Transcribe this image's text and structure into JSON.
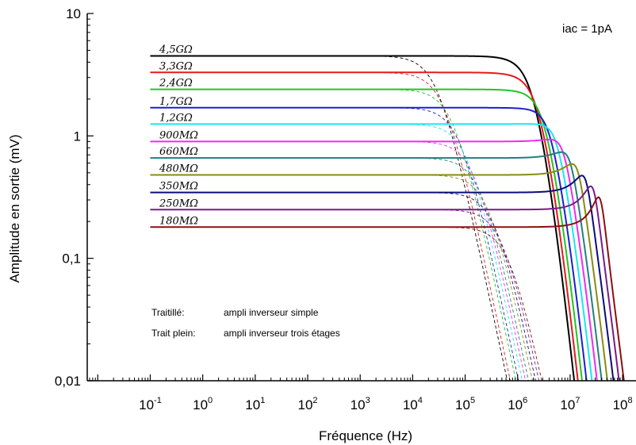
{
  "chart_data": {
    "type": "line",
    "xlabel": "Fréquence (Hz)",
    "ylabel": "Amplitude en sortie (mV)",
    "xscale": "log",
    "yscale": "log",
    "xlim": [
      0.0063,
      180000000
    ],
    "ylim": [
      0.01,
      10
    ],
    "x_ticks": [
      {
        "value": 0.1,
        "base": "10",
        "exp": "-1"
      },
      {
        "value": 1,
        "base": "10",
        "exp": "0"
      },
      {
        "value": 10,
        "base": "10",
        "exp": "1"
      },
      {
        "value": 100,
        "base": "10",
        "exp": "2"
      },
      {
        "value": 1000,
        "base": "10",
        "exp": "3"
      },
      {
        "value": 10000,
        "base": "10",
        "exp": "4"
      },
      {
        "value": 100000,
        "base": "10",
        "exp": "5"
      },
      {
        "value": 1000000,
        "base": "10",
        "exp": "6"
      },
      {
        "value": 10000000,
        "base": "10",
        "exp": "7"
      },
      {
        "value": 100000000,
        "base": "10",
        "exp": "8"
      }
    ],
    "y_ticks": [
      {
        "value": 0.01,
        "label": "0,01"
      },
      {
        "value": 0.1,
        "label": "0,1"
      },
      {
        "value": 1,
        "label": "1"
      },
      {
        "value": 10,
        "label": "10"
      }
    ],
    "annotation": "iac = 1pA",
    "legend_notes": [
      {
        "key": "Traitillé:",
        "text": "ampli inverseur simple"
      },
      {
        "key": "Trait plein:",
        "text": "ampli inverseur trois étages"
      }
    ],
    "legend_placement": "bottom-left",
    "grid": false,
    "x_start": 0.1,
    "series": [
      {
        "name": "4,5GΩ",
        "color": "#000000",
        "values": {
          "plateau": 4.5,
          "fc_dashed": 30000,
          "fc_solid": 1800000
        }
      },
      {
        "name": "3,3GΩ",
        "color": "#e41a1c",
        "values": {
          "plateau": 3.3,
          "fc_dashed": 40000,
          "fc_solid": 2300000
        }
      },
      {
        "name": "2,4GΩ",
        "color": "#22c522",
        "values": {
          "plateau": 2.4,
          "fc_dashed": 60000,
          "fc_solid": 3000000
        }
      },
      {
        "name": "1,7GΩ",
        "color": "#1f1fcc",
        "values": {
          "plateau": 1.7,
          "fc_dashed": 80000,
          "fc_solid": 4000000
        }
      },
      {
        "name": "1,2GΩ",
        "color": "#19e6f0",
        "values": {
          "plateau": 1.25,
          "fc_dashed": 110000,
          "fc_solid": 5500000
        }
      },
      {
        "name": "900MΩ",
        "color": "#ee2cee",
        "values": {
          "plateau": 0.9,
          "fc_dashed": 150000,
          "fc_solid": 7500000
        }
      },
      {
        "name": "660MΩ",
        "color": "#1f8080",
        "values": {
          "plateau": 0.66,
          "fc_dashed": 200000,
          "fc_solid": 10000000
        }
      },
      {
        "name": "480MΩ",
        "color": "#8a8a12",
        "values": {
          "plateau": 0.48,
          "fc_dashed": 280000,
          "fc_solid": 14000000
        }
      },
      {
        "name": "350MΩ",
        "color": "#0c0c7a",
        "values": {
          "plateau": 0.345,
          "fc_dashed": 380000,
          "fc_solid": 20000000
        }
      },
      {
        "name": "250MΩ",
        "color": "#7a1a8a",
        "values": {
          "plateau": 0.25,
          "fc_dashed": 520000,
          "fc_solid": 28000000
        }
      },
      {
        "name": "180MΩ",
        "color": "#8a1010",
        "values": {
          "plateau": 0.18,
          "fc_dashed": 700000,
          "fc_solid": 38000000
        }
      }
    ]
  }
}
